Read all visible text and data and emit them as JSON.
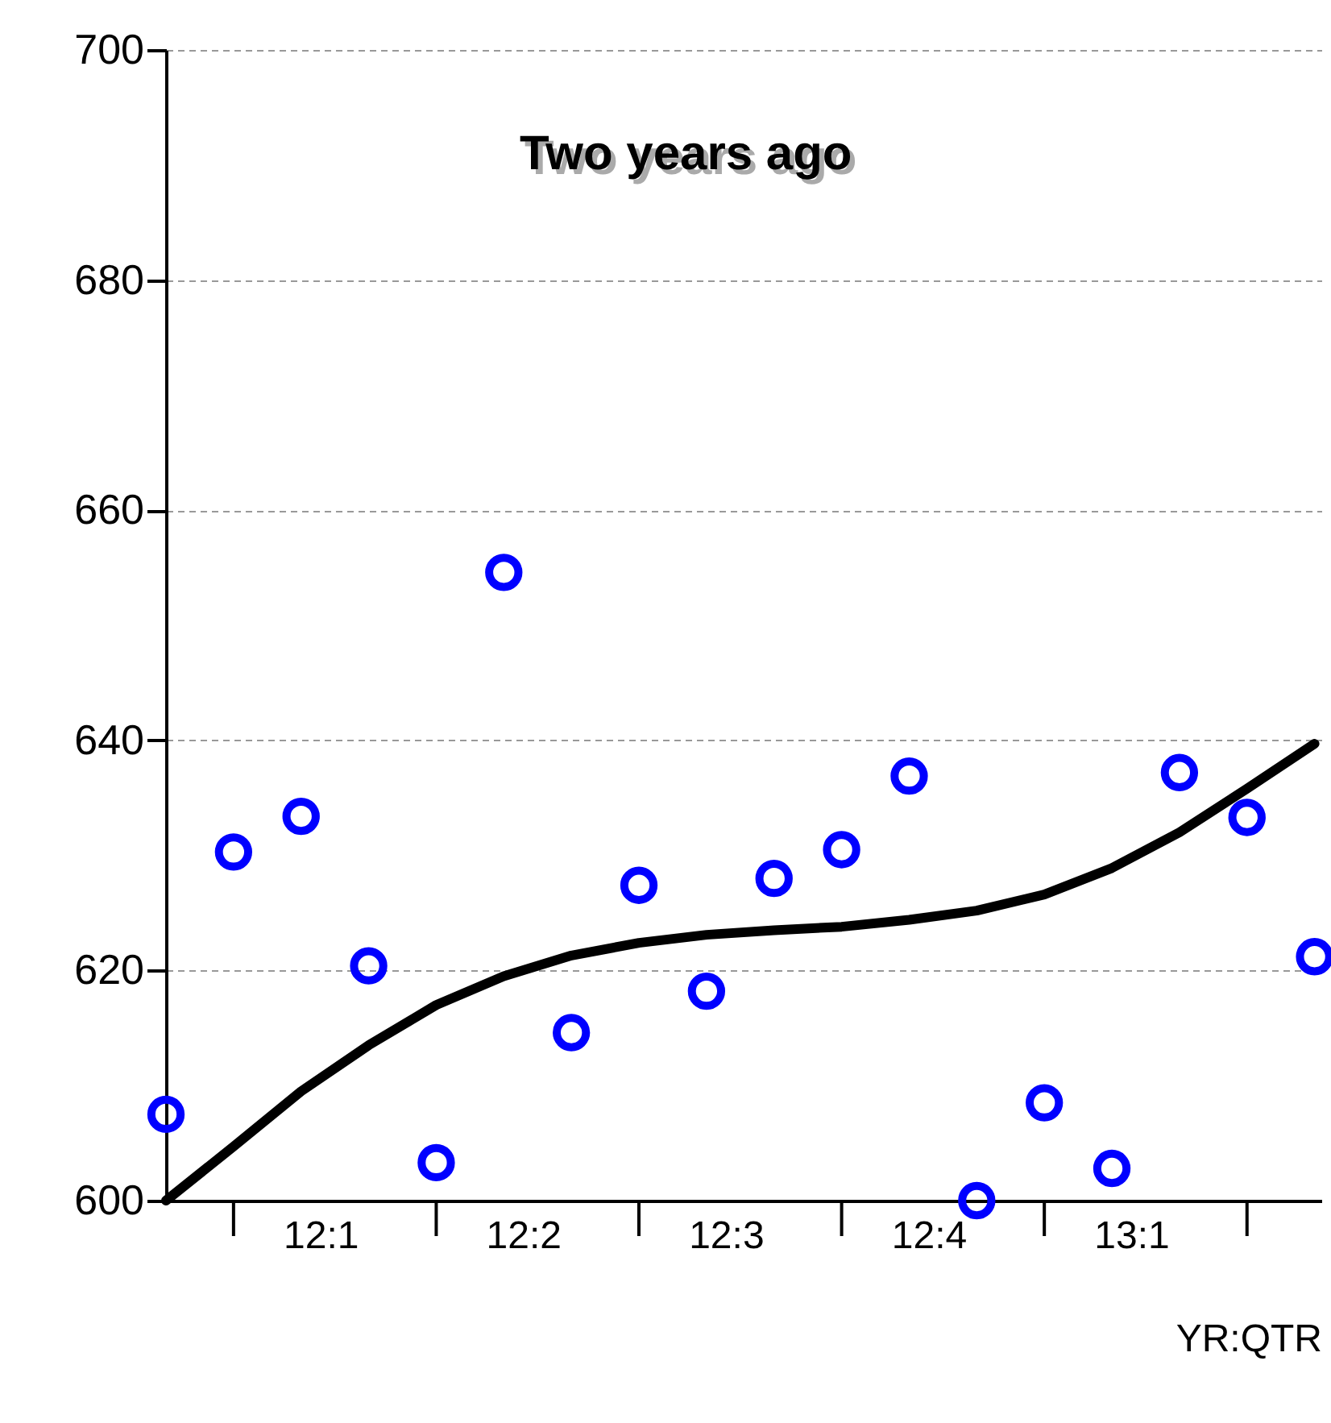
{
  "chart_data": {
    "type": "scatter",
    "title": "Two years ago",
    "xlabel": "YR:QTR",
    "categories": [
      null,
      null,
      "12:1",
      null,
      null,
      "12:2",
      null,
      null,
      "12:3",
      null,
      null,
      "12:4",
      null,
      null,
      "13:1",
      null,
      null,
      null
    ],
    "series": [
      {
        "type": "scatter",
        "color": "#0000ff",
        "marker": "circle",
        "values": [
          607.5,
          630.3,
          633.4,
          620.4,
          603.3,
          654.6,
          614.6,
          627.4,
          618.2,
          628.0,
          630.5,
          636.9,
          600.0,
          608.5,
          602.8,
          637.2,
          633.3,
          621.2
        ]
      },
      {
        "type": "line",
        "color": "#000000",
        "line_style": "solid",
        "values": [
          600.0,
          604.7,
          609.5,
          613.5,
          617.0,
          619.5,
          621.3,
          622.4,
          623.1,
          623.5,
          623.8,
          624.4,
          625.2,
          626.6,
          628.9,
          632.0,
          635.8,
          639.7
        ]
      }
    ],
    "ylim": [
      600,
      700
    ],
    "yticks": [
      600,
      620,
      640,
      660,
      680,
      700
    ],
    "grid": "y"
  }
}
